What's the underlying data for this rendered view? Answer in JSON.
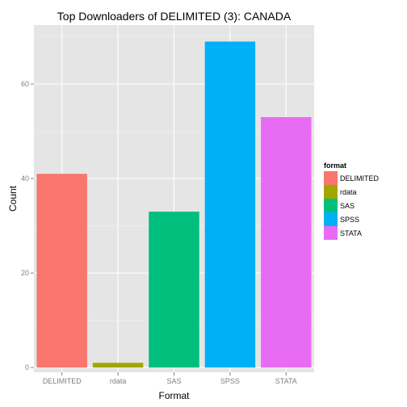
{
  "chart_data": {
    "type": "bar",
    "title": "Top Downloaders of DELIMITED (3):  CANADA",
    "xlabel": "Format",
    "ylabel": "Count",
    "categories": [
      "DELIMITED",
      "rdata",
      "SAS",
      "SPSS",
      "STATA"
    ],
    "values": [
      41,
      1,
      33,
      69,
      53
    ],
    "colors": [
      "#F8766D",
      "#A3A500",
      "#00BF7D",
      "#00B0F6",
      "#E76BF3"
    ],
    "ylim": [
      -1,
      72.5
    ],
    "yticks": [
      0,
      20,
      40,
      60
    ],
    "grid": true,
    "panel_background": "#E5E5E5",
    "grid_color": "#FFFFFF",
    "legend": {
      "title": "format",
      "position": "right",
      "entries": [
        "DELIMITED",
        "rdata",
        "SAS",
        "SPSS",
        "STATA"
      ]
    }
  }
}
